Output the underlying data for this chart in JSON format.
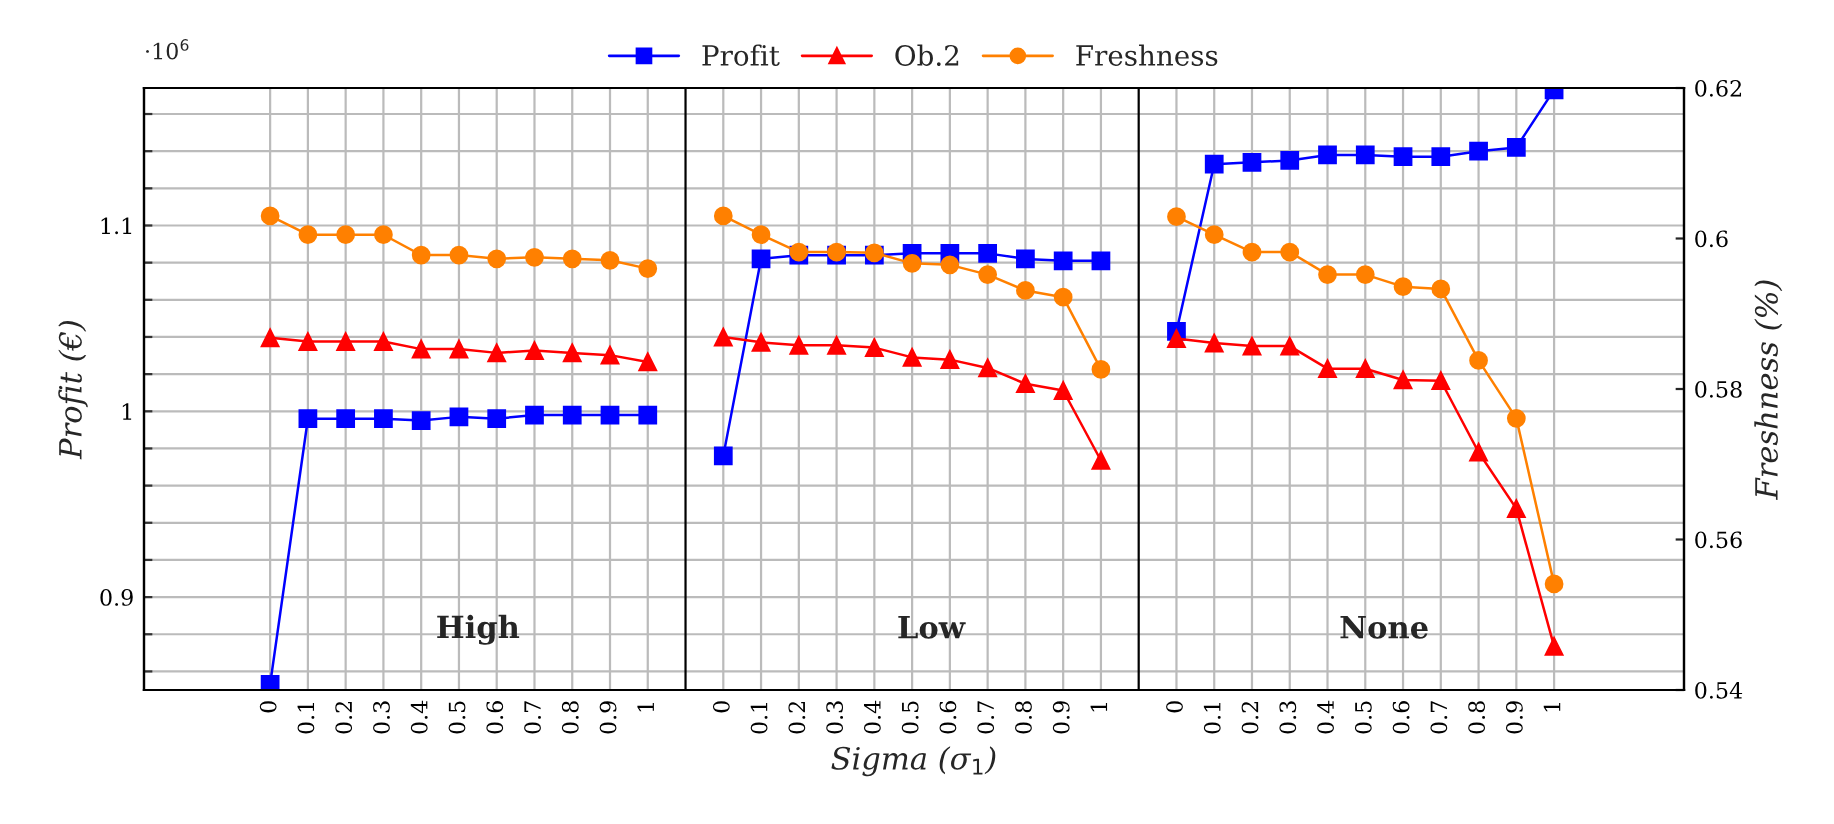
{
  "chart_data": {
    "type": "line",
    "xlabel": "Sigma (σ$_{1}$)",
    "ylabel": "Profit (€)",
    "y2label": "Freshness (%)",
    "annotations": [
      "·10$^{6}$",
      "High",
      "Low",
      "None"
    ],
    "grid": true,
    "legend": "top",
    "categories": [
      "0",
      "0.1",
      "0.2",
      "0.3",
      "0.4",
      "0.5",
      "0.6",
      "0.7",
      "0.8",
      "0.9",
      "1",
      null,
      "0",
      "0.1",
      "0.2",
      "0.3",
      "0.4",
      "0.5",
      "0.6",
      "0.7",
      "0.8",
      "0.9",
      "1",
      null,
      "0",
      "0.1",
      "0.2",
      "0.3",
      "0.4",
      "0.5",
      "0.6",
      "0.7",
      "0.8",
      "0.9",
      "1"
    ],
    "ylim": [
      0.85,
      1.174
    ],
    "yticks": [
      {
        "value": 0.86,
        "label": null
      },
      {
        "value": 0.88,
        "label": null
      },
      0.9,
      {
        "value": 0.92,
        "label": null
      },
      {
        "value": 0.94,
        "label": null
      },
      {
        "value": 0.96,
        "label": null
      },
      {
        "value": 0.98,
        "label": null
      },
      1,
      {
        "value": 1.02,
        "label": null
      },
      {
        "value": 1.04,
        "label": null
      },
      {
        "value": 1.06,
        "label": null
      },
      {
        "value": 1.08,
        "label": null
      },
      1.1,
      {
        "value": 1.12,
        "label": null
      },
      {
        "value": 1.14,
        "label": null
      },
      {
        "value": 1.16,
        "label": null
      }
    ],
    "y2lim": [
      0.54,
      0.62
    ],
    "y2ticks": [
      0.54,
      0.56,
      0.58,
      0.6,
      0.62
    ],
    "series": [
      {
        "name": "Profit",
        "color": "#0000ff",
        "marker": "square",
        "values": [
          0.853,
          0.996,
          0.996,
          0.996,
          0.995,
          0.997,
          0.996,
          0.998,
          0.998,
          0.998,
          0.998,
          null,
          0.976,
          1.082,
          1.084,
          1.084,
          1.084,
          1.085,
          1.085,
          1.085,
          1.082,
          1.081,
          1.081,
          null,
          1.043,
          1.133,
          1.134,
          1.135,
          1.138,
          1.138,
          1.137,
          1.137,
          1.14,
          1.142,
          1.173
        ]
      },
      {
        "name": "Ob.2",
        "color": "#ff0000",
        "marker": "triangle",
        "axis": "y2",
        "values": [
          0.5868,
          0.5863,
          0.5863,
          0.5863,
          0.5853,
          0.5853,
          0.5848,
          0.5851,
          0.5848,
          0.5845,
          0.5836,
          null,
          0.5869,
          0.5862,
          0.5858,
          0.5858,
          0.5855,
          0.5842,
          0.5839,
          0.5828,
          0.5807,
          0.5798,
          0.5705,
          null,
          0.5867,
          0.5861,
          0.5857,
          0.5857,
          0.5827,
          0.5827,
          0.5812,
          0.5811,
          0.5716,
          0.5641,
          0.5458
        ]
      },
      {
        "name": "Freshness",
        "color": "#ff8000",
        "marker": "circle",
        "axis": "y2",
        "values": [
          0.603,
          0.6005,
          0.6005,
          0.6005,
          0.5978,
          0.5978,
          0.5973,
          0.5975,
          0.5973,
          0.5971,
          0.596,
          null,
          0.603,
          0.6005,
          0.5982,
          0.5982,
          0.5981,
          0.5967,
          0.5965,
          0.5952,
          0.5931,
          0.5922,
          0.5826,
          null,
          0.6029,
          0.6005,
          0.5982,
          0.5982,
          0.5952,
          0.5952,
          0.5936,
          0.5933,
          0.5838,
          0.5761,
          0.5541
        ]
      }
    ]
  }
}
